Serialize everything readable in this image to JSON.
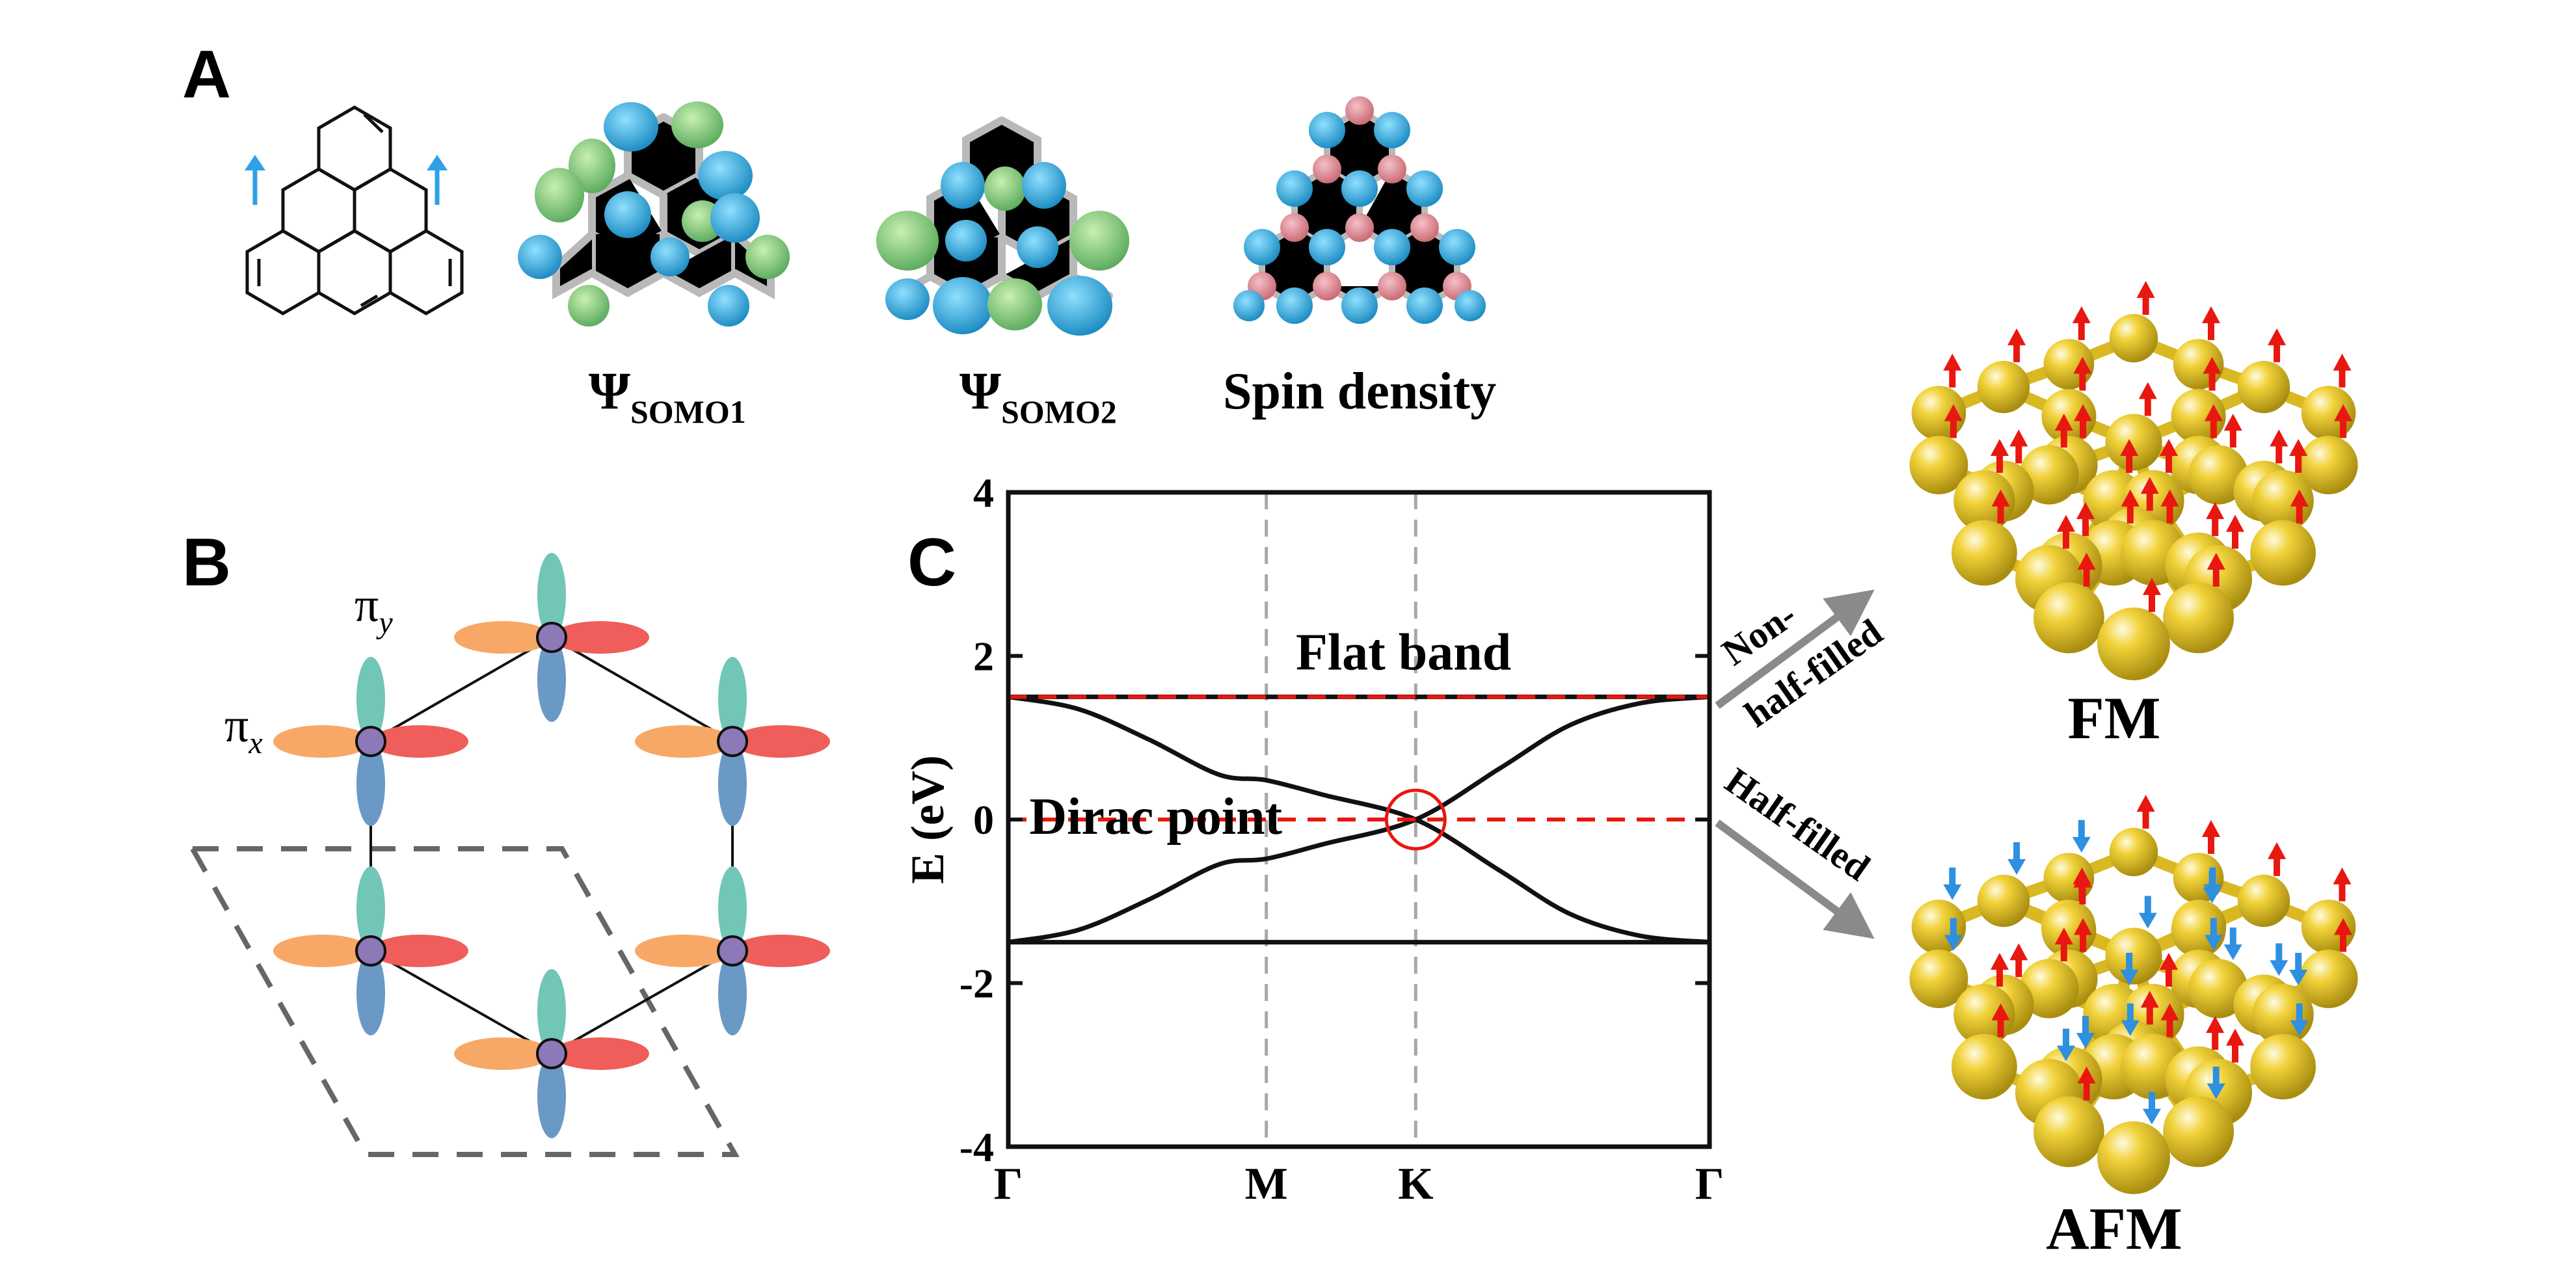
{
  "panels": {
    "a": {
      "label": "A",
      "somo1": "Ψ",
      "somo1_sub": "SOMO1",
      "somo2": "Ψ",
      "somo2_sub": "SOMO2",
      "spin_density": "Spin density"
    },
    "b": {
      "label": "B",
      "pi_y": "π",
      "pi_y_sub": "y",
      "pi_x": "π",
      "pi_x_sub": "x"
    },
    "c": {
      "label": "C"
    },
    "d": {
      "fm_label": "FM",
      "afm_label": "AFM",
      "arrow_upper": "Non-half-filled",
      "arrow_upper_line1": "Non-",
      "arrow_upper_line2": "half-filled",
      "arrow_lower": "Half-filled"
    }
  },
  "colors": {
    "fm_label": "#ff2020",
    "afm_label": "#1f2be0",
    "spin_up_arrow": "#e8170f",
    "spin_down_arrow": "#2f8fe0",
    "atom": "#e6c327",
    "orbital_lobe_green": "#7ac77a",
    "orbital_lobe_blue": "#2ba8d8",
    "pi_y_teal": "#72c6b6",
    "pi_y_blue": "#6b99c6",
    "pi_x_orange": "#f8a866",
    "pi_x_red": "#ef5e5a",
    "node_purple": "#8d78b8"
  },
  "chart_data": {
    "type": "line",
    "ylabel": "E (eV)",
    "ylim": [
      -4,
      4
    ],
    "yticks": [
      -4,
      -2,
      0,
      2,
      4
    ],
    "xticks": [
      "Γ",
      "M",
      "K",
      "Γ"
    ],
    "x_positions": [
      0,
      0.368,
      0.581,
      1
    ],
    "grid": false,
    "annotations": {
      "flat": "Flat band",
      "dirac": "Dirac point"
    },
    "reference_lines": [
      {
        "y": 1.5,
        "style": "dashed-red"
      },
      {
        "y": 0,
        "style": "dashed-red"
      }
    ],
    "series": [
      {
        "x": [
          0,
          0.1,
          0.2,
          0.3,
          0.368,
          0.45,
          0.581,
          0.7,
          0.8,
          0.9,
          1.0
        ],
        "values": [
          1.5,
          1.35,
          0.98,
          0.55,
          0.48,
          0.3,
          0.0,
          -0.62,
          -1.15,
          -1.42,
          -1.5
        ]
      },
      {
        "x": [
          0,
          0.1,
          0.2,
          0.3,
          0.368,
          0.45,
          0.581,
          0.7,
          0.8,
          0.9,
          1.0
        ],
        "values": [
          -1.5,
          -1.35,
          -0.98,
          -0.55,
          -0.48,
          -0.3,
          0.0,
          0.62,
          1.15,
          1.42,
          1.5
        ]
      },
      {
        "x": [
          0,
          1
        ],
        "values": [
          1.5,
          1.5
        ]
      },
      {
        "x": [
          0,
          1
        ],
        "values": [
          -1.5,
          -1.5
        ]
      }
    ]
  }
}
